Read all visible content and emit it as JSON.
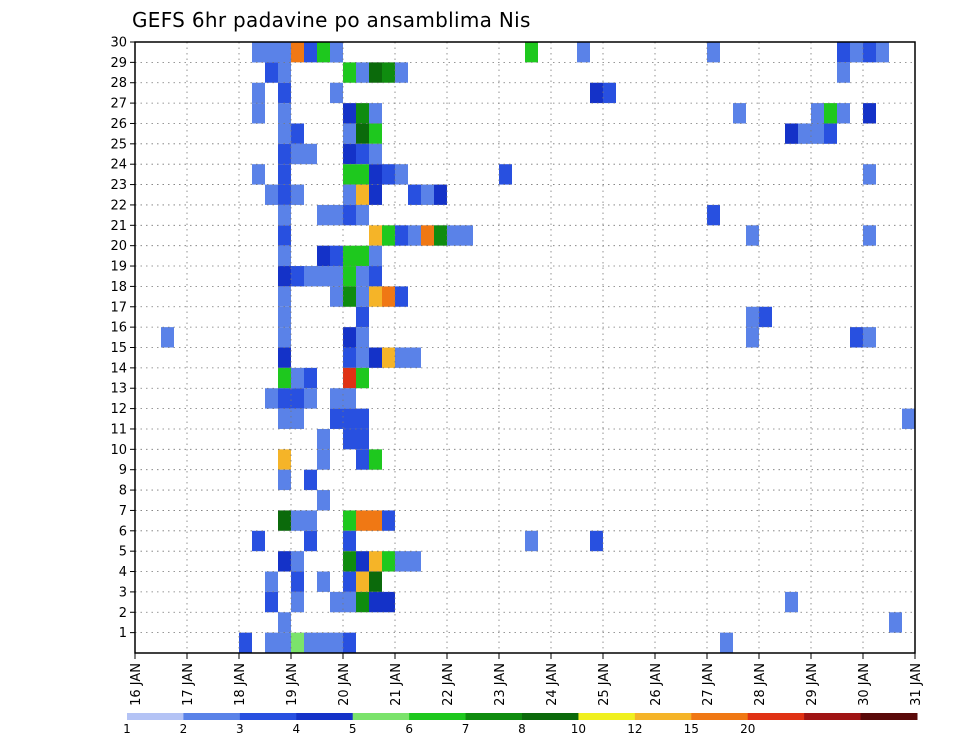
{
  "chart_data": {
    "type": "heatmap",
    "title": "GEFS 6hr padavine po ansamblima Nis",
    "xlabel": "",
    "ylabel": "",
    "x_ticks": [
      "16 JAN",
      "17 JAN",
      "18 JAN",
      "19 JAN",
      "20 JAN",
      "21 JAN",
      "22 JAN",
      "23 JAN",
      "24 JAN",
      "25 JAN",
      "26 JAN",
      "27 JAN",
      "28 JAN",
      "29 JAN",
      "30 JAN",
      "31 JAN"
    ],
    "y_ticks": [
      "1",
      "2",
      "3",
      "4",
      "5",
      "6",
      "7",
      "8",
      "9",
      "10",
      "11",
      "12",
      "13",
      "14",
      "15",
      "16",
      "17",
      "18",
      "19",
      "20",
      "21",
      "22",
      "23",
      "24",
      "25",
      "26",
      "27",
      "28",
      "29",
      "30"
    ],
    "xlim": [
      "16 JAN 00Z",
      "31 JAN 00Z"
    ],
    "ylim": [
      0,
      30
    ],
    "grid": "dotted",
    "legend_position": "bottom",
    "colorbar": {
      "thresholds": [
        "1",
        "2",
        "3",
        "4",
        "5",
        "6",
        "7",
        "8",
        "10",
        "12",
        "15",
        "20"
      ],
      "colors": [
        "#b4c3f5",
        "#5a82e8",
        "#2850e0",
        "#1432c8",
        "#7be36b",
        "#1ec81e",
        "#0f8c0f",
        "#0b6a0b",
        "#f0f01e",
        "#f5b428",
        "#f07814",
        "#e03214",
        "#a01414",
        "#5a0a0a"
      ]
    },
    "cells": [
      {
        "time": "16 JAN 12Z",
        "member": 15,
        "bin": 1
      },
      {
        "time": "18 JAN 06Z",
        "member": 30,
        "bin": 1
      },
      {
        "time": "18 JAN 06Z",
        "member": 29,
        "bin": 1
      },
      {
        "time": "18 JAN 06Z",
        "member": 27,
        "bin": 1
      },
      {
        "time": "18 JAN 06Z",
        "member": 26,
        "bin": 1
      },
      {
        "time": "18 JAN 06Z",
        "member": 23,
        "bin": 1
      },
      {
        "time": "18 JAN 06Z",
        "member": 5,
        "bin": 2
      },
      {
        "time": "18 JAN 00Z",
        "member": 0,
        "bin": 2
      },
      {
        "time": "18 JAN 12Z",
        "member": 30,
        "bin": 1
      },
      {
        "time": "18 JAN 12Z",
        "member": 28,
        "bin": 2
      },
      {
        "time": "18 JAN 12Z",
        "member": 22,
        "bin": 1
      },
      {
        "time": "18 JAN 12Z",
        "member": 12,
        "bin": 1
      },
      {
        "time": "18 JAN 12Z",
        "member": 3,
        "bin": 1
      },
      {
        "time": "18 JAN 12Z",
        "member": 2,
        "bin": 2
      },
      {
        "time": "18 JAN 12Z",
        "member": 0,
        "bin": 1
      },
      {
        "time": "18 JAN 18Z",
        "member": 30,
        "bin": 1
      },
      {
        "time": "18 JAN 18Z",
        "member": 29,
        "bin": 1
      },
      {
        "time": "18 JAN 18Z",
        "member": 28,
        "bin": 1
      },
      {
        "time": "18 JAN 18Z",
        "member": 27,
        "bin": 2
      },
      {
        "time": "18 JAN 18Z",
        "member": 26,
        "bin": 1
      },
      {
        "time": "18 JAN 18Z",
        "member": 25,
        "bin": 1
      },
      {
        "time": "18 JAN 18Z",
        "member": 24,
        "bin": 2
      },
      {
        "time": "18 JAN 18Z",
        "member": 23,
        "bin": 2
      },
      {
        "time": "18 JAN 18Z",
        "member": 22,
        "bin": 2
      },
      {
        "time": "18 JAN 18Z",
        "member": 21,
        "bin": 1
      },
      {
        "time": "18 JAN 18Z",
        "member": 20,
        "bin": 2
      },
      {
        "time": "18 JAN 18Z",
        "member": 19,
        "bin": 1
      },
      {
        "time": "18 JAN 18Z",
        "member": 18,
        "bin": 3
      },
      {
        "time": "18 JAN 18Z",
        "member": 17,
        "bin": 1
      },
      {
        "time": "18 JAN 18Z",
        "member": 16,
        "bin": 1
      },
      {
        "time": "18 JAN 18Z",
        "member": 15,
        "bin": 1
      },
      {
        "time": "18 JAN 18Z",
        "member": 14,
        "bin": 3
      },
      {
        "time": "18 JAN 18Z",
        "member": 13,
        "bin": 5
      },
      {
        "time": "18 JAN 18Z",
        "member": 12,
        "bin": 2
      },
      {
        "time": "18 JAN 18Z",
        "member": 11,
        "bin": 1
      },
      {
        "time": "18 JAN 18Z",
        "member": 9,
        "bin": 9
      },
      {
        "time": "18 JAN 18Z",
        "member": 8,
        "bin": 1
      },
      {
        "time": "18 JAN 18Z",
        "member": 6,
        "bin": 7
      },
      {
        "time": "18 JAN 18Z",
        "member": 4,
        "bin": 3
      },
      {
        "time": "18 JAN 18Z",
        "member": 1,
        "bin": 1
      },
      {
        "time": "18 JAN 18Z",
        "member": 0,
        "bin": 1
      },
      {
        "time": "19 JAN 00Z",
        "member": 30,
        "bin": 10
      },
      {
        "time": "19 JAN 00Z",
        "member": 25,
        "bin": 2
      },
      {
        "time": "19 JAN 00Z",
        "member": 24,
        "bin": 1
      },
      {
        "time": "19 JAN 00Z",
        "member": 22,
        "bin": 1
      },
      {
        "time": "19 JAN 00Z",
        "member": 18,
        "bin": 2
      },
      {
        "time": "19 JAN 00Z",
        "member": 13,
        "bin": 1
      },
      {
        "time": "19 JAN 00Z",
        "member": 12,
        "bin": 2
      },
      {
        "time": "19 JAN 00Z",
        "member": 11,
        "bin": 1
      },
      {
        "time": "19 JAN 00Z",
        "member": 6,
        "bin": 1
      },
      {
        "time": "19 JAN 00Z",
        "member": 4,
        "bin": 1
      },
      {
        "time": "19 JAN 00Z",
        "member": 3,
        "bin": 2
      },
      {
        "time": "19 JAN 00Z",
        "member": 2,
        "bin": 1
      },
      {
        "time": "19 JAN 00Z",
        "member": 0,
        "bin": 4
      },
      {
        "time": "19 JAN 06Z",
        "member": 30,
        "bin": 2
      },
      {
        "time": "19 JAN 06Z",
        "member": 24,
        "bin": 1
      },
      {
        "time": "19 JAN 06Z",
        "member": 18,
        "bin": 1
      },
      {
        "time": "19 JAN 06Z",
        "member": 13,
        "bin": 2
      },
      {
        "time": "19 JAN 06Z",
        "member": 12,
        "bin": 1
      },
      {
        "time": "19 JAN 06Z",
        "member": 8,
        "bin": 2
      },
      {
        "time": "19 JAN 06Z",
        "member": 6,
        "bin": 1
      },
      {
        "time": "19 JAN 06Z",
        "member": 5,
        "bin": 2
      },
      {
        "time": "19 JAN 06Z",
        "member": 0,
        "bin": 1
      },
      {
        "time": "19 JAN 12Z",
        "member": 30,
        "bin": 1
      },
      {
        "time": "19 JAN 12Z",
        "member": 29,
        "bin": 5
      },
      {
        "time": "19 JAN 12Z",
        "member": 21,
        "bin": 1
      },
      {
        "time": "19 JAN 12Z",
        "member": 19,
        "bin": 3
      },
      {
        "time": "19 JAN 12Z",
        "member": 18,
        "bin": 1
      },
      {
        "time": "19 JAN 12Z",
        "member": 10,
        "bin": 1
      },
      {
        "time": "19 JAN 12Z",
        "member": 9,
        "bin": 1
      },
      {
        "time": "19 JAN 12Z",
        "member": 7,
        "bin": 1
      },
      {
        "time": "19 JAN 12Z",
        "member": 3,
        "bin": 1
      },
      {
        "time": "19 JAN 12Z",
        "member": 0,
        "bin": 1
      },
      {
        "time": "19 JAN 18Z",
        "member": 30,
        "bin": 2
      },
      {
        "time": "19 JAN 18Z",
        "member": 29,
        "bin": 1
      },
      {
        "time": "19 JAN 18Z",
        "member": 27,
        "bin": 1
      },
      {
        "time": "19 JAN 18Z",
        "member": 21,
        "bin": 1
      },
      {
        "time": "19 JAN 18Z",
        "member": 19,
        "bin": 2
      },
      {
        "time": "19 JAN 18Z",
        "member": 18,
        "bin": 1
      },
      {
        "time": "19 JAN 18Z",
        "member": 17,
        "bin": 1
      },
      {
        "time": "19 JAN 18Z",
        "member": 12,
        "bin": 1
      },
      {
        "time": "19 JAN 18Z",
        "member": 11,
        "bin": 2
      },
      {
        "time": "19 JAN 18Z",
        "member": 2,
        "bin": 1
      },
      {
        "time": "19 JAN 18Z",
        "member": 0,
        "bin": 1
      },
      {
        "time": "20 JAN 00Z",
        "member": 28,
        "bin": 5
      },
      {
        "time": "20 JAN 00Z",
        "member": 26,
        "bin": 3
      },
      {
        "time": "20 JAN 00Z",
        "member": 25,
        "bin": 1
      },
      {
        "time": "20 JAN 00Z",
        "member": 24,
        "bin": 3
      },
      {
        "time": "20 JAN 00Z",
        "member": 23,
        "bin": 5
      },
      {
        "time": "20 JAN 00Z",
        "member": 22,
        "bin": 1
      },
      {
        "time": "20 JAN 00Z",
        "member": 21,
        "bin": 2
      },
      {
        "time": "20 JAN 00Z",
        "member": 19,
        "bin": 5
      },
      {
        "time": "20 JAN 00Z",
        "member": 18,
        "bin": 5
      },
      {
        "time": "20 JAN 00Z",
        "member": 17,
        "bin": 6
      },
      {
        "time": "20 JAN 00Z",
        "member": 15,
        "bin": 3
      },
      {
        "time": "20 JAN 00Z",
        "member": 14,
        "bin": 2
      },
      {
        "time": "20 JAN 00Z",
        "member": 13,
        "bin": 11
      },
      {
        "time": "20 JAN 00Z",
        "member": 12,
        "bin": 1
      },
      {
        "time": "20 JAN 00Z",
        "member": 11,
        "bin": 2
      },
      {
        "time": "20 JAN 00Z",
        "member": 10,
        "bin": 2
      },
      {
        "time": "20 JAN 00Z",
        "member": 6,
        "bin": 5
      },
      {
        "time": "20 JAN 00Z",
        "member": 5,
        "bin": 2
      },
      {
        "time": "20 JAN 00Z",
        "member": 4,
        "bin": 6
      },
      {
        "time": "20 JAN 00Z",
        "member": 3,
        "bin": 2
      },
      {
        "time": "20 JAN 00Z",
        "member": 2,
        "bin": 1
      },
      {
        "time": "20 JAN 00Z",
        "member": 0,
        "bin": 2
      },
      {
        "time": "20 JAN 06Z",
        "member": 28,
        "bin": 1
      },
      {
        "time": "20 JAN 06Z",
        "member": 26,
        "bin": 6
      },
      {
        "time": "20 JAN 06Z",
        "member": 25,
        "bin": 7
      },
      {
        "time": "20 JAN 06Z",
        "member": 24,
        "bin": 2
      },
      {
        "time": "20 JAN 06Z",
        "member": 23,
        "bin": 5
      },
      {
        "time": "20 JAN 06Z",
        "member": 22,
        "bin": 9
      },
      {
        "time": "20 JAN 06Z",
        "member": 21,
        "bin": 1
      },
      {
        "time": "20 JAN 06Z",
        "member": 19,
        "bin": 5
      },
      {
        "time": "20 JAN 06Z",
        "member": 18,
        "bin": 1
      },
      {
        "time": "20 JAN 06Z",
        "member": 17,
        "bin": 1
      },
      {
        "time": "20 JAN 06Z",
        "member": 16,
        "bin": 2
      },
      {
        "time": "20 JAN 06Z",
        "member": 15,
        "bin": 1
      },
      {
        "time": "20 JAN 06Z",
        "member": 14,
        "bin": 1
      },
      {
        "time": "20 JAN 06Z",
        "member": 13,
        "bin": 5
      },
      {
        "time": "20 JAN 06Z",
        "member": 11,
        "bin": 2
      },
      {
        "time": "20 JAN 06Z",
        "member": 10,
        "bin": 2
      },
      {
        "time": "20 JAN 06Z",
        "member": 9,
        "bin": 2
      },
      {
        "time": "20 JAN 06Z",
        "member": 6,
        "bin": 10
      },
      {
        "time": "20 JAN 06Z",
        "member": 4,
        "bin": 3
      },
      {
        "time": "20 JAN 06Z",
        "member": 3,
        "bin": 9
      },
      {
        "time": "20 JAN 06Z",
        "member": 2,
        "bin": 6
      },
      {
        "time": "20 JAN 12Z",
        "member": 28,
        "bin": 7
      },
      {
        "time": "20 JAN 12Z",
        "member": 26,
        "bin": 1
      },
      {
        "time": "20 JAN 12Z",
        "member": 25,
        "bin": 5
      },
      {
        "time": "20 JAN 12Z",
        "member": 24,
        "bin": 1
      },
      {
        "time": "20 JAN 12Z",
        "member": 23,
        "bin": 3
      },
      {
        "time": "20 JAN 12Z",
        "member": 22,
        "bin": 3
      },
      {
        "time": "20 JAN 12Z",
        "member": 20,
        "bin": 9
      },
      {
        "time": "20 JAN 12Z",
        "member": 19,
        "bin": 1
      },
      {
        "time": "20 JAN 12Z",
        "member": 18,
        "bin": 2
      },
      {
        "time": "20 JAN 12Z",
        "member": 17,
        "bin": 9
      },
      {
        "time": "20 JAN 12Z",
        "member": 14,
        "bin": 3
      },
      {
        "time": "20 JAN 12Z",
        "member": 9,
        "bin": 5
      },
      {
        "time": "20 JAN 12Z",
        "member": 6,
        "bin": 10
      },
      {
        "time": "20 JAN 12Z",
        "member": 4,
        "bin": 9
      },
      {
        "time": "20 JAN 12Z",
        "member": 3,
        "bin": 7
      },
      {
        "time": "20 JAN 12Z",
        "member": 2,
        "bin": 3
      },
      {
        "time": "20 JAN 18Z",
        "member": 28,
        "bin": 6
      },
      {
        "time": "20 JAN 18Z",
        "member": 23,
        "bin": 2
      },
      {
        "time": "20 JAN 18Z",
        "member": 20,
        "bin": 5
      },
      {
        "time": "20 JAN 18Z",
        "member": 17,
        "bin": 10
      },
      {
        "time": "20 JAN 18Z",
        "member": 14,
        "bin": 9
      },
      {
        "time": "20 JAN 18Z",
        "member": 6,
        "bin": 2
      },
      {
        "time": "20 JAN 18Z",
        "member": 4,
        "bin": 5
      },
      {
        "time": "20 JAN 18Z",
        "member": 2,
        "bin": 3
      },
      {
        "time": "21 JAN 00Z",
        "member": 28,
        "bin": 1
      },
      {
        "time": "21 JAN 00Z",
        "member": 23,
        "bin": 1
      },
      {
        "time": "21 JAN 00Z",
        "member": 20,
        "bin": 2
      },
      {
        "time": "21 JAN 00Z",
        "member": 17,
        "bin": 2
      },
      {
        "time": "21 JAN 00Z",
        "member": 14,
        "bin": 1
      },
      {
        "time": "21 JAN 00Z",
        "member": 4,
        "bin": 1
      },
      {
        "time": "21 JAN 06Z",
        "member": 22,
        "bin": 2
      },
      {
        "time": "21 JAN 06Z",
        "member": 20,
        "bin": 1
      },
      {
        "time": "21 JAN 06Z",
        "member": 14,
        "bin": 1
      },
      {
        "time": "21 JAN 06Z",
        "member": 4,
        "bin": 1
      },
      {
        "time": "21 JAN 12Z",
        "member": 22,
        "bin": 1
      },
      {
        "time": "21 JAN 12Z",
        "member": 20,
        "bin": 10
      },
      {
        "time": "21 JAN 18Z",
        "member": 22,
        "bin": 3
      },
      {
        "time": "21 JAN 18Z",
        "member": 20,
        "bin": 6
      },
      {
        "time": "22 JAN 00Z",
        "member": 20,
        "bin": 1
      },
      {
        "time": "22 JAN 06Z",
        "member": 20,
        "bin": 1
      },
      {
        "time": "23 JAN 00Z",
        "member": 23,
        "bin": 2
      },
      {
        "time": "23 JAN 12Z",
        "member": 29,
        "bin": 5
      },
      {
        "time": "23 JAN 12Z",
        "member": 5,
        "bin": 1
      },
      {
        "time": "24 JAN 12Z",
        "member": 29,
        "bin": 1
      },
      {
        "time": "24 JAN 18Z",
        "member": 27,
        "bin": 3
      },
      {
        "time": "24 JAN 18Z",
        "member": 5,
        "bin": 2
      },
      {
        "time": "25 JAN 00Z",
        "member": 27,
        "bin": 2
      },
      {
        "time": "27 JAN 00Z",
        "member": 30,
        "bin": 1
      },
      {
        "time": "27 JAN 00Z",
        "member": 21,
        "bin": 2
      },
      {
        "time": "27 JAN 06Z",
        "member": 0,
        "bin": 1
      },
      {
        "time": "27 JAN 12Z",
        "member": 26,
        "bin": 1
      },
      {
        "time": "27 JAN 18Z",
        "member": 20,
        "bin": 1
      },
      {
        "time": "27 JAN 18Z",
        "member": 16,
        "bin": 1
      },
      {
        "time": "27 JAN 18Z",
        "member": 15,
        "bin": 1
      },
      {
        "time": "28 JAN 00Z",
        "member": 16,
        "bin": 2
      },
      {
        "time": "28 JAN 12Z",
        "member": 25,
        "bin": 3
      },
      {
        "time": "28 JAN 12Z",
        "member": 2,
        "bin": 1
      },
      {
        "time": "28 JAN 18Z",
        "member": 25,
        "bin": 1
      },
      {
        "time": "29 JAN 00Z",
        "member": 26,
        "bin": 1
      },
      {
        "time": "29 JAN 00Z",
        "member": 25,
        "bin": 1
      },
      {
        "time": "29 JAN 06Z",
        "member": 26,
        "bin": 5
      },
      {
        "time": "29 JAN 06Z",
        "member": 25,
        "bin": 2
      },
      {
        "time": "29 JAN 12Z",
        "member": 30,
        "bin": 2
      },
      {
        "time": "29 JAN 12Z",
        "member": 28,
        "bin": 1
      },
      {
        "time": "29 JAN 12Z",
        "member": 26,
        "bin": 1
      },
      {
        "time": "29 JAN 18Z",
        "member": 30,
        "bin": 1
      },
      {
        "time": "29 JAN 18Z",
        "member": 15,
        "bin": 2
      },
      {
        "time": "30 JAN 00Z",
        "member": 30,
        "bin": 2
      },
      {
        "time": "30 JAN 00Z",
        "member": 26,
        "bin": 3
      },
      {
        "time": "30 JAN 00Z",
        "member": 23,
        "bin": 1
      },
      {
        "time": "30 JAN 00Z",
        "member": 20,
        "bin": 1
      },
      {
        "time": "30 JAN 00Z",
        "member": 15,
        "bin": 1
      },
      {
        "time": "30 JAN 06Z",
        "member": 30,
        "bin": 1
      },
      {
        "time": "30 JAN 12Z",
        "member": 1,
        "bin": 1
      },
      {
        "time": "30 JAN 18Z",
        "member": 11,
        "bin": 1
      },
      {
        "time": "31 JAN 00Z",
        "member": 11,
        "bin": 3
      }
    ]
  }
}
